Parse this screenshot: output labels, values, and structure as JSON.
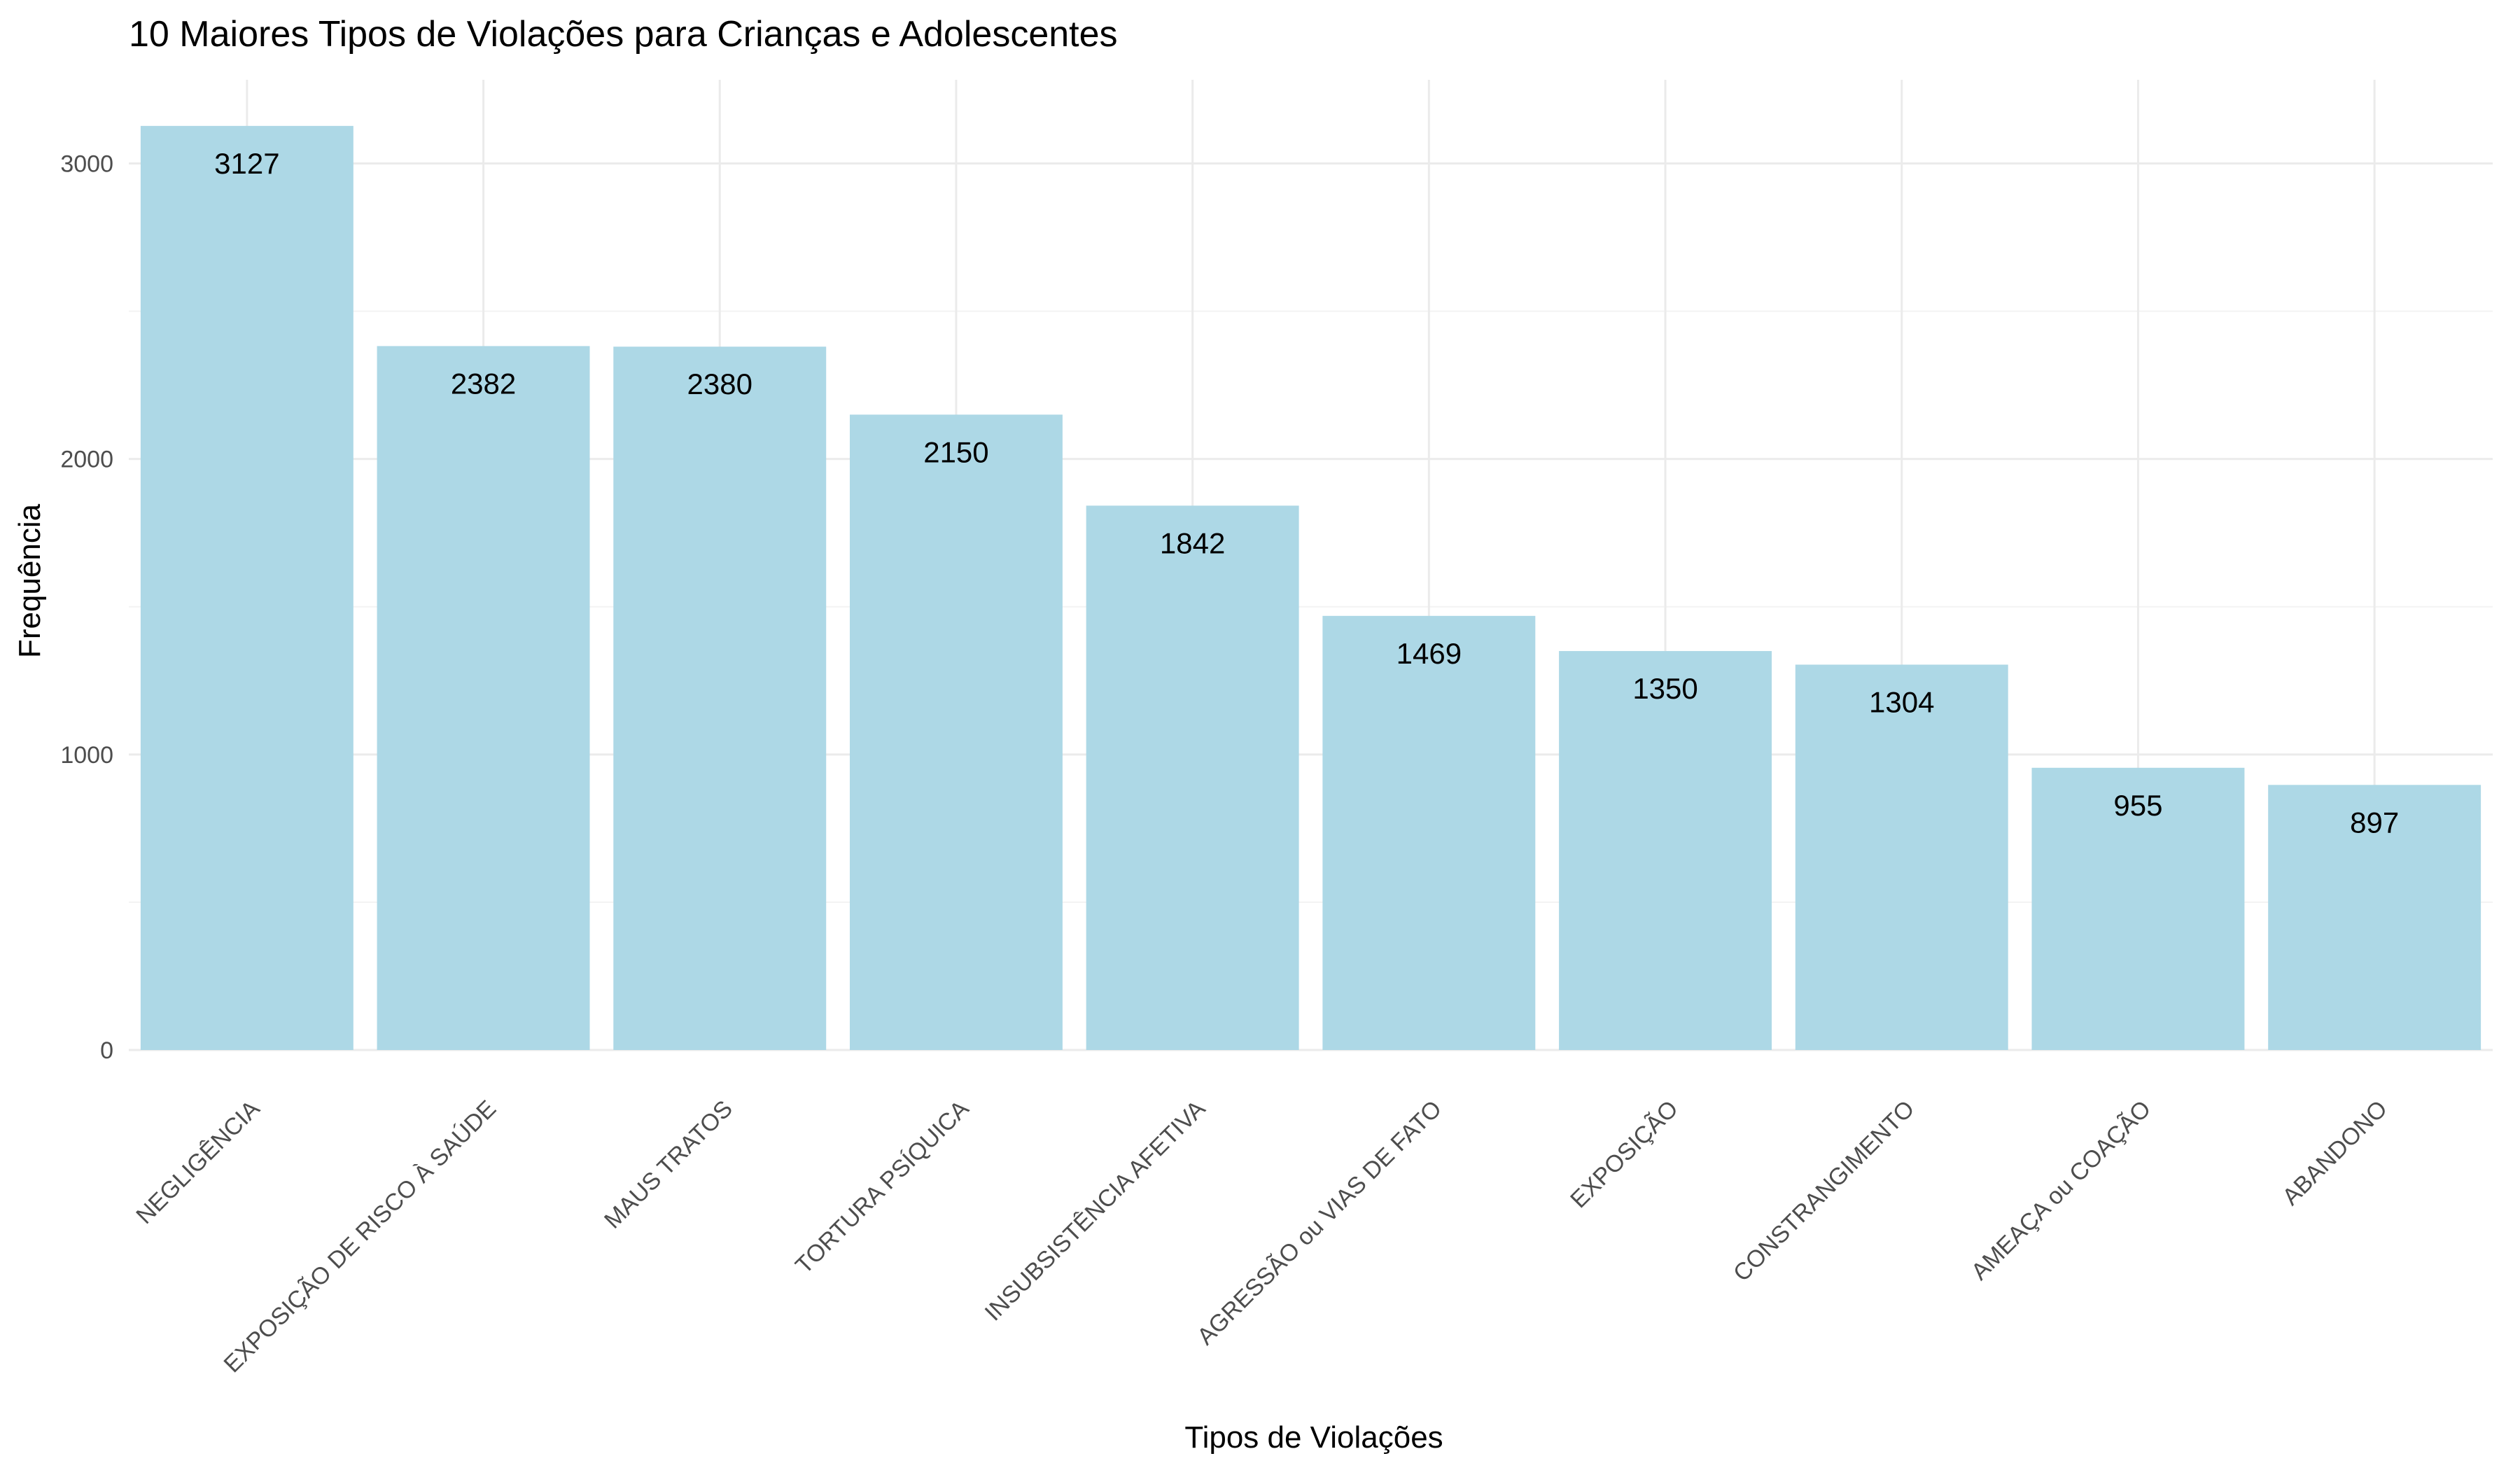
{
  "chart_data": {
    "type": "bar",
    "title": "10 Maiores Tipos de Violações para Crianças e Adolescentes",
    "xlabel": "Tipos de Violações",
    "ylabel": "Frequência",
    "categories": [
      "NEGLIGÊNCIA",
      "EXPOSIÇÃO DE RISCO À SAÚDE",
      "MAUS TRATOS",
      "TORTURA PSÍQUICA",
      "INSUBSISTÊNCIA AFETIVA",
      "AGRESSÃO ou VIAS DE FATO",
      "EXPOSIÇÃO",
      "CONSTRANGIMENTO",
      "AMEAÇA ou COAÇÃO",
      "ABANDONO"
    ],
    "values": [
      3127,
      2382,
      2380,
      2150,
      1842,
      1469,
      1350,
      1304,
      955,
      897
    ],
    "value_labels": [
      "3127",
      "2382",
      "2380",
      "2150",
      "1842",
      "1469",
      "1350",
      "1304",
      "955",
      "897"
    ],
    "y_ticks": [
      0,
      1000,
      2000,
      3000
    ],
    "y_tick_labels": [
      "0",
      "1000",
      "2000",
      "3000"
    ],
    "ylim": [
      0,
      3283
    ],
    "grid": true,
    "legend": "none",
    "bar_color": "#add8e6"
  }
}
